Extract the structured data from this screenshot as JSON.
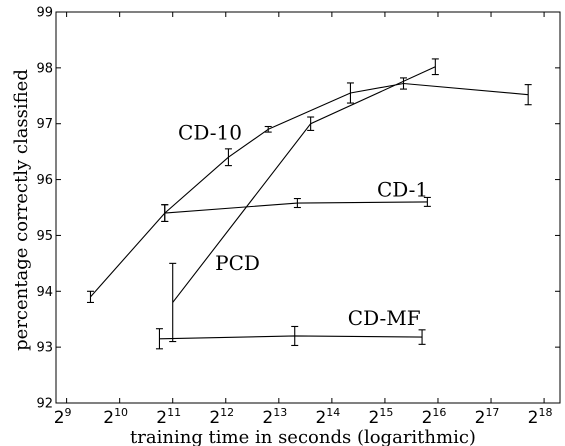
{
  "chart_data": {
    "type": "line",
    "title": "",
    "xlabel": "training time in seconds (logarithmic)",
    "ylabel": "percentage correctly classified",
    "x_scale": "log2",
    "xlim_exp": [
      8.8,
      18.3
    ],
    "ylim": [
      92,
      99
    ],
    "x_ticks": [
      {
        "base": "2",
        "exp": "9"
      },
      {
        "base": "2",
        "exp": "10"
      },
      {
        "base": "2",
        "exp": "11"
      },
      {
        "base": "2",
        "exp": "12"
      },
      {
        "base": "2",
        "exp": "13"
      },
      {
        "base": "2",
        "exp": "14"
      },
      {
        "base": "2",
        "exp": "15"
      },
      {
        "base": "2",
        "exp": "16"
      },
      {
        "base": "2",
        "exp": "17"
      },
      {
        "base": "2",
        "exp": "18"
      }
    ],
    "y_ticks": [
      "92",
      "93",
      "94",
      "95",
      "96",
      "97",
      "98",
      "99"
    ],
    "grid": false,
    "legend": "none",
    "series": [
      {
        "name": "CD-10",
        "points": [
          {
            "x_exp": 9.45,
            "y": 93.9,
            "err": 0.1
          },
          {
            "x_exp": 10.85,
            "y": 95.4,
            "err": 0.15
          },
          {
            "x_exp": 12.05,
            "y": 96.4,
            "err": 0.15
          },
          {
            "x_exp": 12.8,
            "y": 96.9,
            "err": 0.05
          },
          {
            "x_exp": 14.35,
            "y": 97.55,
            "err": 0.18
          },
          {
            "x_exp": 15.35,
            "y": 97.72,
            "err": 0.1
          },
          {
            "x_exp": 17.7,
            "y": 97.52,
            "err": 0.18
          }
        ]
      },
      {
        "name": "CD-1",
        "points": [
          {
            "x_exp": 10.85,
            "y": 95.4,
            "err": 0.15
          },
          {
            "x_exp": 13.35,
            "y": 95.58,
            "err": 0.08
          },
          {
            "x_exp": 15.8,
            "y": 95.6,
            "err": 0.08
          }
        ]
      },
      {
        "name": "PCD",
        "points": [
          {
            "x_exp": 11.0,
            "y": 93.8,
            "err": 0.7
          },
          {
            "x_exp": 13.6,
            "y": 97.0,
            "err": 0.12
          },
          {
            "x_exp": 15.95,
            "y": 98.02,
            "err": 0.14
          }
        ]
      },
      {
        "name": "CD-MF",
        "points": [
          {
            "x_exp": 10.75,
            "y": 93.15,
            "err": 0.18
          },
          {
            "x_exp": 13.3,
            "y": 93.2,
            "err": 0.17
          },
          {
            "x_exp": 15.7,
            "y": 93.18,
            "err": 0.13
          }
        ]
      }
    ],
    "annotations": [
      {
        "text": "CD-10",
        "x_exp": 11.1,
        "y": 96.72
      },
      {
        "text": "CD-1",
        "x_exp": 14.85,
        "y": 95.7
      },
      {
        "text": "PCD",
        "x_exp": 11.8,
        "y": 94.38
      },
      {
        "text": "CD-MF",
        "x_exp": 14.3,
        "y": 93.4
      }
    ]
  }
}
